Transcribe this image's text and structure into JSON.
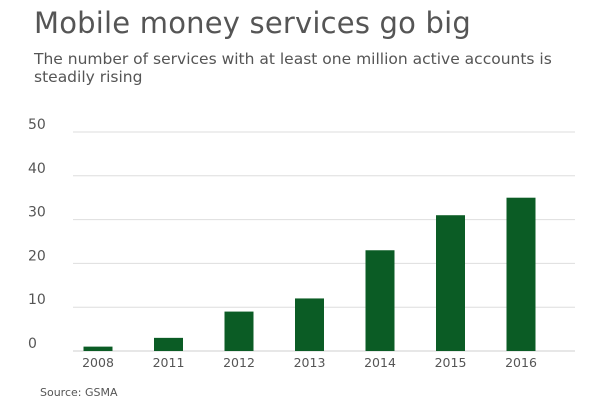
{
  "chart_data": {
    "type": "bar",
    "title": "Mobile money services go big",
    "subtitle": "The number of services with at least one million active accounts is steadily rising",
    "categories": [
      "2008",
      "2011",
      "2012",
      "2013",
      "2014",
      "2015",
      "2016"
    ],
    "values": [
      1,
      3,
      9,
      12,
      23,
      31,
      35
    ],
    "ylim": [
      0,
      50
    ],
    "yticks": [
      0,
      10,
      20,
      30,
      40,
      50
    ],
    "grid": true,
    "bar_color": "#0b5c25",
    "source": "Source: GSMA"
  }
}
